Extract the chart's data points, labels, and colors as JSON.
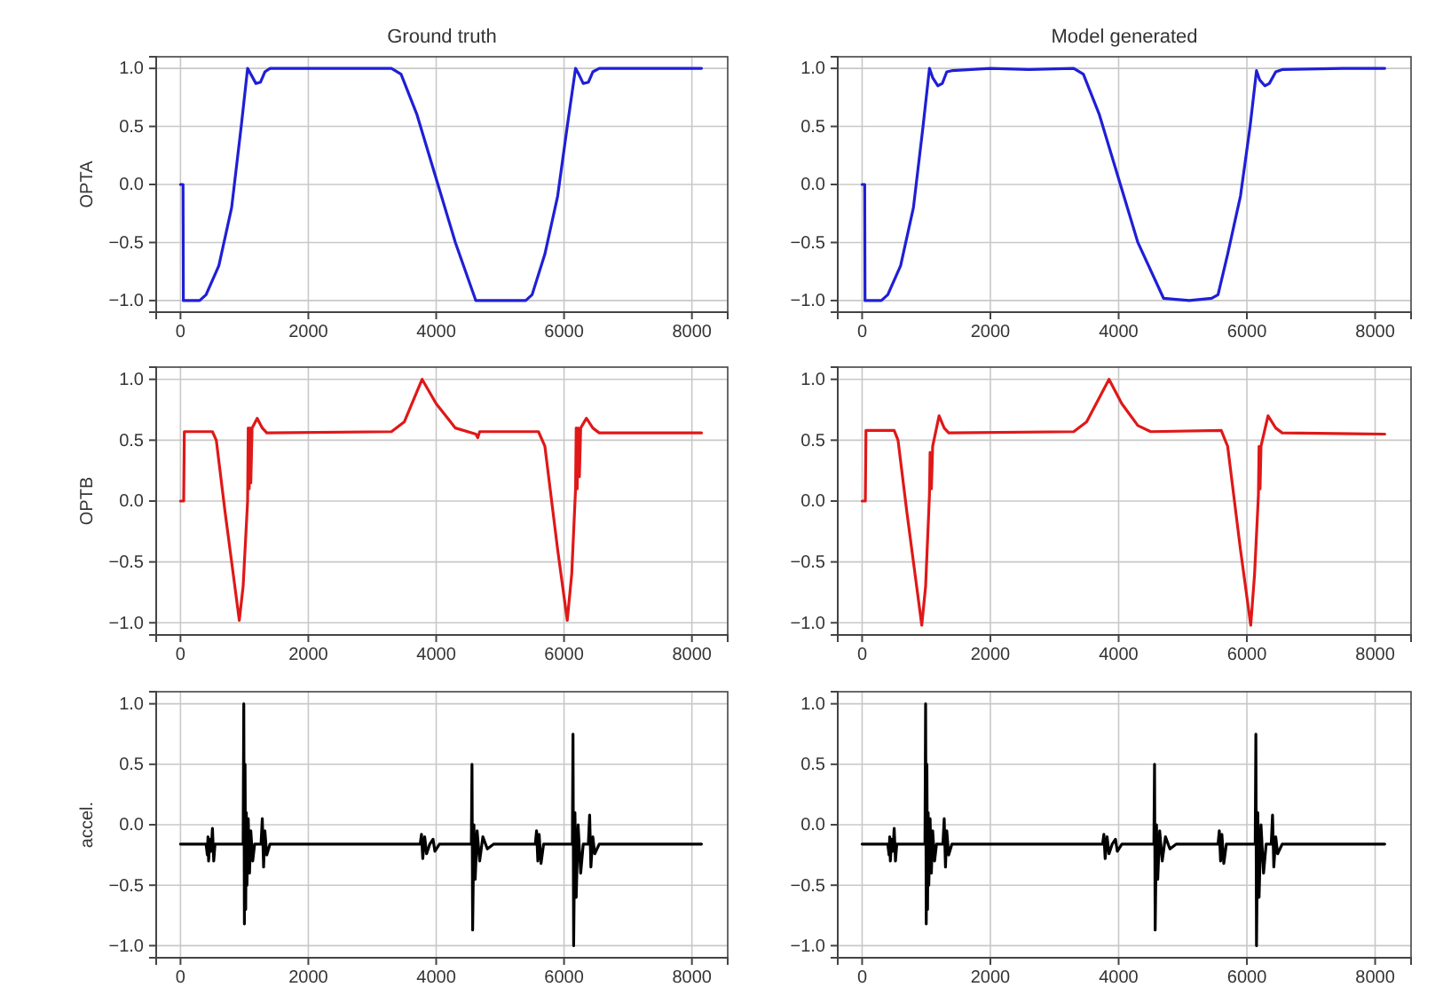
{
  "chart_data": [
    {
      "type": "line",
      "title": "Ground truth",
      "ylabel": "OPTA",
      "xlim": [
        -380,
        8560
      ],
      "ylim": [
        -1.1,
        1.1
      ],
      "xticks": [
        0,
        2000,
        4000,
        6000,
        8000
      ],
      "yticks": [
        {
          "value": -1,
          "label": "−1.0"
        },
        {
          "value": -0.5,
          "label": "−0.5"
        },
        {
          "value": 0,
          "label": "0.0"
        },
        {
          "value": 0.5,
          "label": "0.5"
        },
        {
          "value": 1,
          "label": "1.0"
        }
      ],
      "grid": true,
      "series": [
        {
          "color": "#1f1fd6",
          "x": [
            0,
            40,
            45,
            300,
            400,
            600,
            800,
            950,
            1050,
            1100,
            1180,
            1250,
            1320,
            1400,
            3300,
            3450,
            3700,
            4000,
            4300,
            4620,
            5400,
            5500,
            5700,
            5900,
            6050,
            6180,
            6230,
            6300,
            6380,
            6450,
            6550,
            8150
          ],
          "values": [
            0,
            0,
            -1,
            -1,
            -0.95,
            -0.7,
            -0.2,
            0.5,
            1,
            0.95,
            0.87,
            0.88,
            0.97,
            1,
            1,
            0.95,
            0.6,
            0.05,
            -0.5,
            -1,
            -1,
            -0.95,
            -0.6,
            -0.1,
            0.5,
            1,
            0.95,
            0.87,
            0.88,
            0.97,
            1,
            1
          ]
        }
      ]
    },
    {
      "type": "line",
      "title": "Model generated",
      "xlim": [
        -380,
        8560
      ],
      "ylim": [
        -1.1,
        1.1
      ],
      "xticks": [
        0,
        2000,
        4000,
        6000,
        8000
      ],
      "yticks": [
        {
          "value": -1,
          "label": "−1.0"
        },
        {
          "value": -0.5,
          "label": "−0.5"
        },
        {
          "value": 0,
          "label": "0.0"
        },
        {
          "value": 0.5,
          "label": "0.5"
        },
        {
          "value": 1,
          "label": "1.0"
        }
      ],
      "grid": true,
      "series": [
        {
          "color": "#1f1fd6",
          "x": [
            0,
            40,
            45,
            300,
            400,
            600,
            800,
            950,
            1050,
            1100,
            1180,
            1250,
            1320,
            1400,
            2000,
            2600,
            3300,
            3450,
            3700,
            4000,
            4300,
            4700,
            5100,
            5450,
            5550,
            5700,
            5900,
            6050,
            6150,
            6200,
            6280,
            6350,
            6450,
            6550,
            7500,
            8150
          ],
          "values": [
            0,
            0,
            -1,
            -1,
            -0.95,
            -0.7,
            -0.2,
            0.5,
            1,
            0.92,
            0.85,
            0.87,
            0.97,
            0.98,
            1,
            0.99,
            1,
            0.95,
            0.6,
            0.05,
            -0.5,
            -0.98,
            -1,
            -0.98,
            -0.95,
            -0.6,
            -0.1,
            0.5,
            0.98,
            0.9,
            0.85,
            0.87,
            0.97,
            0.99,
            1,
            1
          ]
        }
      ]
    },
    {
      "type": "line",
      "ylabel": "OPTB",
      "xlim": [
        -380,
        8560
      ],
      "ylim": [
        -1.1,
        1.1
      ],
      "xticks": [
        0,
        2000,
        4000,
        6000,
        8000
      ],
      "yticks": [
        {
          "value": -1,
          "label": "−1.0"
        },
        {
          "value": -0.5,
          "label": "−0.5"
        },
        {
          "value": 0,
          "label": "0.0"
        },
        {
          "value": 0.5,
          "label": "0.5"
        },
        {
          "value": 1,
          "label": "1.0"
        }
      ],
      "grid": true,
      "series": [
        {
          "color": "#e01818",
          "x": [
            0,
            50,
            60,
            500,
            560,
            700,
            850,
            920,
            980,
            1050,
            1060,
            1075,
            1090,
            1100,
            1120,
            1200,
            1280,
            1350,
            3300,
            3500,
            3780,
            4000,
            4300,
            4620,
            4650,
            4680,
            5600,
            5700,
            5900,
            6050,
            6120,
            6180,
            6190,
            6205,
            6220,
            6240,
            6260,
            6350,
            6450,
            6550,
            8150
          ],
          "values": [
            0,
            0,
            0.57,
            0.57,
            0.5,
            -0.1,
            -0.7,
            -0.98,
            -0.7,
            0,
            0.6,
            0.1,
            0.6,
            0.15,
            0.6,
            0.68,
            0.6,
            0.56,
            0.57,
            0.65,
            1,
            0.8,
            0.6,
            0.55,
            0.52,
            0.57,
            0.57,
            0.45,
            -0.4,
            -0.98,
            -0.6,
            0.1,
            0.6,
            0.1,
            0.6,
            0.2,
            0.6,
            0.68,
            0.6,
            0.56,
            0.56
          ]
        }
      ]
    },
    {
      "type": "line",
      "xlim": [
        -380,
        8560
      ],
      "ylim": [
        -1.1,
        1.1
      ],
      "xticks": [
        0,
        2000,
        4000,
        6000,
        8000
      ],
      "yticks": [
        {
          "value": -1,
          "label": "−1.0"
        },
        {
          "value": -0.5,
          "label": "−0.5"
        },
        {
          "value": 0,
          "label": "0.0"
        },
        {
          "value": 0.5,
          "label": "0.5"
        },
        {
          "value": 1,
          "label": "1.0"
        }
      ],
      "grid": true,
      "series": [
        {
          "color": "#e01818",
          "x": [
            0,
            50,
            60,
            500,
            560,
            700,
            850,
            930,
            990,
            1050,
            1060,
            1080,
            1100,
            1200,
            1280,
            1350,
            3300,
            3500,
            3850,
            4050,
            4300,
            4500,
            5600,
            5700,
            5900,
            6060,
            6120,
            6180,
            6190,
            6205,
            6220,
            6330,
            6450,
            6550,
            8150
          ],
          "values": [
            0,
            0,
            0.58,
            0.58,
            0.5,
            -0.1,
            -0.7,
            -1.02,
            -0.7,
            0.05,
            0.4,
            0.1,
            0.45,
            0.7,
            0.6,
            0.56,
            0.57,
            0.65,
            1,
            0.8,
            0.62,
            0.57,
            0.58,
            0.45,
            -0.4,
            -1.02,
            -0.6,
            0.05,
            0.45,
            0.1,
            0.45,
            0.7,
            0.6,
            0.56,
            0.55
          ]
        }
      ]
    },
    {
      "type": "line",
      "ylabel": "accel.",
      "xlim": [
        -380,
        8560
      ],
      "ylim": [
        -1.1,
        1.1
      ],
      "xticks": [
        0,
        2000,
        4000,
        6000,
        8000
      ],
      "yticks": [
        {
          "value": -1,
          "label": "−1.0"
        },
        {
          "value": -0.5,
          "label": "−0.5"
        },
        {
          "value": 0,
          "label": "0.0"
        },
        {
          "value": 0.5,
          "label": "0.5"
        },
        {
          "value": 1,
          "label": "1.0"
        }
      ],
      "grid": true,
      "series": [
        {
          "color": "#000000",
          "x": [
            0,
            400,
            420,
            430,
            440,
            460,
            480,
            500,
            520,
            540,
            980,
            990,
            1000,
            1010,
            1020,
            1030,
            1040,
            1060,
            1080,
            1100,
            1130,
            1160,
            1260,
            1280,
            1300,
            1320,
            1350,
            1400,
            3750,
            3770,
            3790,
            3820,
            3850,
            3900,
            3950,
            3980,
            4050,
            4550,
            4560,
            4570,
            4590,
            4610,
            4640,
            4680,
            4730,
            4800,
            4900,
            5550,
            5570,
            5590,
            5610,
            5640,
            5680,
            6130,
            6140,
            6150,
            6170,
            6190,
            6220,
            6260,
            6300,
            6380,
            6400,
            6420,
            6450,
            6480,
            6550,
            8150
          ],
          "values": [
            -0.16,
            -0.16,
            -0.25,
            -0.1,
            -0.3,
            -0.12,
            -0.22,
            -0.03,
            -0.3,
            -0.16,
            -0.16,
            1,
            -0.82,
            0.5,
            -0.7,
            0.1,
            -0.5,
            0.05,
            -0.4,
            -0.05,
            -0.3,
            -0.16,
            -0.16,
            0.05,
            -0.35,
            -0.05,
            -0.25,
            -0.16,
            -0.16,
            -0.08,
            -0.28,
            -0.1,
            -0.24,
            -0.16,
            -0.12,
            -0.22,
            -0.16,
            -0.16,
            0.5,
            -0.87,
            0,
            -0.45,
            -0.05,
            -0.3,
            -0.1,
            -0.2,
            -0.16,
            -0.16,
            -0.05,
            -0.3,
            -0.08,
            -0.32,
            -0.16,
            -0.16,
            0.75,
            -1,
            0.1,
            -0.6,
            0,
            -0.4,
            -0.16,
            -0.16,
            0.08,
            -0.35,
            -0.1,
            -0.24,
            -0.16,
            -0.16
          ]
        }
      ]
    },
    {
      "type": "line",
      "xlim": [
        -380,
        8560
      ],
      "ylim": [
        -1.1,
        1.1
      ],
      "xticks": [
        0,
        2000,
        4000,
        6000,
        8000
      ],
      "yticks": [
        {
          "value": -1,
          "label": "−1.0"
        },
        {
          "value": -0.5,
          "label": "−0.5"
        },
        {
          "value": 0,
          "label": "0.0"
        },
        {
          "value": 0.5,
          "label": "0.5"
        },
        {
          "value": 1,
          "label": "1.0"
        }
      ],
      "grid": true,
      "series": [
        {
          "color": "#000000",
          "x": [
            0,
            400,
            420,
            430,
            440,
            460,
            480,
            500,
            520,
            540,
            980,
            990,
            1000,
            1010,
            1020,
            1030,
            1040,
            1060,
            1080,
            1100,
            1130,
            1160,
            1260,
            1280,
            1300,
            1320,
            1350,
            1400,
            3750,
            3770,
            3790,
            3820,
            3850,
            3900,
            3950,
            3980,
            4050,
            4550,
            4560,
            4570,
            4590,
            4610,
            4640,
            4680,
            4730,
            4800,
            4900,
            5550,
            5570,
            5590,
            5610,
            5640,
            5680,
            6130,
            6140,
            6150,
            6170,
            6190,
            6220,
            6260,
            6300,
            6380,
            6400,
            6420,
            6450,
            6480,
            6550,
            8150
          ],
          "values": [
            -0.16,
            -0.16,
            -0.25,
            -0.1,
            -0.3,
            -0.12,
            -0.22,
            -0.03,
            -0.3,
            -0.16,
            -0.16,
            1,
            -0.82,
            0.5,
            -0.7,
            0.1,
            -0.5,
            0.05,
            -0.4,
            -0.05,
            -0.3,
            -0.16,
            -0.16,
            0.05,
            -0.35,
            -0.05,
            -0.25,
            -0.16,
            -0.16,
            -0.08,
            -0.28,
            -0.1,
            -0.24,
            -0.16,
            -0.12,
            -0.22,
            -0.16,
            -0.16,
            0.5,
            -0.87,
            0,
            -0.45,
            -0.05,
            -0.3,
            -0.1,
            -0.2,
            -0.16,
            -0.16,
            -0.05,
            -0.3,
            -0.08,
            -0.32,
            -0.16,
            -0.16,
            0.75,
            -1,
            0.1,
            -0.6,
            0,
            -0.4,
            -0.16,
            -0.16,
            0.08,
            -0.35,
            -0.1,
            -0.24,
            -0.16,
            -0.16
          ]
        }
      ]
    }
  ]
}
